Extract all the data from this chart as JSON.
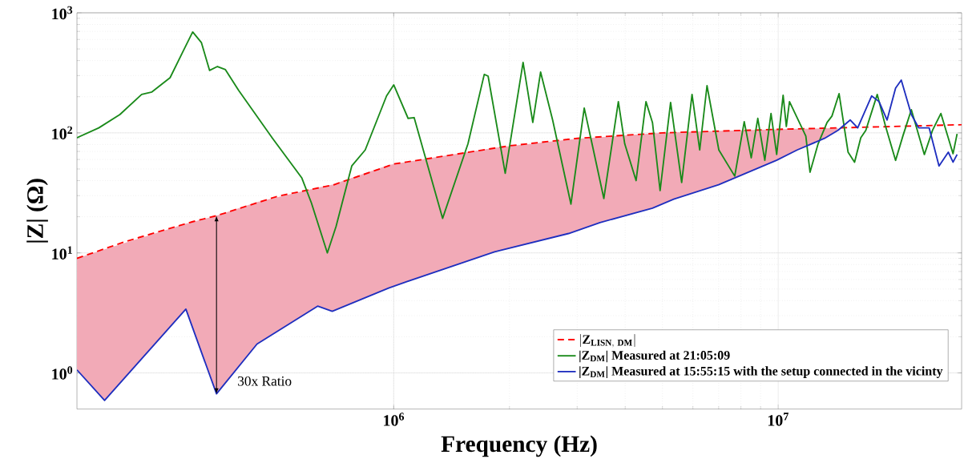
{
  "chart_data": {
    "type": "line",
    "xlabel": "Frequency (Hz)",
    "ylabel": "|Z| (Ω)",
    "log": "xy",
    "grid": true,
    "legend": "bottom right",
    "xlim": [
      150000,
      30000000
    ],
    "ylim": [
      0.5,
      1000
    ],
    "xticks": [
      {
        "value": 1000000,
        "label": "10$^{6}$"
      },
      {
        "value": 10000000,
        "label": "10$^{7}$"
      }
    ],
    "yticks": [
      {
        "value": 1,
        "label": "10$^{0}$"
      },
      {
        "value": 10,
        "label": "10$^{1}$"
      },
      {
        "value": 100,
        "label": "10$^{2}$"
      },
      {
        "value": 1000,
        "label": "10$^{3}$"
      }
    ],
    "annotations": [
      "30x Ratio"
    ],
    "series": [
      {
        "name": "|\\mathbf{Z}_{\\mathbf{LISN,\\ DM}}|",
        "color": "#ff0000",
        "line_style": "dashed",
        "x": [
          150000,
          200000,
          300000,
          346000,
          500000,
          700000,
          1000000,
          2000000,
          3000000,
          5000000,
          10000000,
          20000000,
          30000000
        ],
        "values": [
          9,
          12.4,
          18.2,
          20.4,
          29.7,
          37,
          55,
          78,
          90,
          100,
          107,
          113,
          117
        ]
      },
      {
        "name": "|Z$_{DM}$| Measured at 21:05:09",
        "color": "#1a8a1a",
        "line_style": "solid",
        "x": [
          150000,
          171000,
          194000,
          221000,
          235000,
          262000,
          284000,
          300000,
          316000,
          332000,
          348000,
          365000,
          395000,
          484000,
          577000,
          611000,
          672000,
          708000,
          778000,
          843000,
          958000,
          1000000,
          1090000,
          1130000,
          1340000,
          1560000,
          1720000,
          1760000,
          1950000,
          2170000,
          2300000,
          2410000,
          2590000,
          2890000,
          3130000,
          3280000,
          3520000,
          3840000,
          3990000,
          4270000,
          4530000,
          4710000,
          4930000,
          5250000,
          5610000,
          5970000,
          6250000,
          6530000,
          7010000,
          7710000,
          8160000,
          8510000,
          8850000,
          9230000,
          9580000,
          9910000,
          10300000,
          10500000,
          10700000,
          11800000,
          12100000,
          12700000,
          13400000,
          13800000,
          14400000,
          15200000,
          15800000,
          16400000,
          16900000,
          18100000,
          19000000,
          20200000,
          21100000,
          22200000,
          24000000,
          25200000,
          26500000,
          28500000,
          29200000
        ],
        "values": [
          91,
          110,
          142,
          209,
          219,
          288,
          486,
          692,
          566,
          331,
          357,
          336,
          226,
          90,
          42,
          26,
          10,
          16.6,
          53,
          72,
          203,
          251,
          132,
          134,
          19.4,
          81,
          307,
          297,
          46,
          386,
          122,
          321,
          128,
          25.5,
          161,
          81,
          28.4,
          182,
          81,
          40,
          182,
          122,
          33,
          179,
          38.6,
          209,
          72,
          247,
          72,
          43.6,
          124,
          62,
          132,
          59,
          145,
          66,
          206,
          113,
          182,
          94,
          47,
          81,
          122,
          138,
          212,
          69,
          57,
          91,
          105,
          209,
          115,
          59,
          94,
          156,
          66,
          105,
          145,
          67,
          98
        ]
      },
      {
        "name": "|Z$_{DM}$| Measured at 15:55:15 with the setup connected in the vicinty",
        "color": "#1f2fbf",
        "line_style": "solid",
        "x": [
          150000,
          177000,
          288000,
          346000,
          441000,
          634000,
          692000,
          970000,
          1070000,
          1830000,
          2850000,
          3440000,
          4710000,
          5350000,
          7000000,
          9900000,
          11200000,
          13200000,
          14300000,
          15400000,
          16100000,
          17500000,
          18300000,
          19200000,
          20200000,
          20900000,
          22200000,
          23200000,
          24700000,
          26200000,
          27700000,
          28500000,
          29200000
        ],
        "values": [
          1.06,
          0.59,
          3.4,
          0.67,
          1.74,
          3.6,
          3.26,
          5.1,
          5.7,
          10.2,
          14.5,
          17.9,
          23.6,
          28,
          37,
          59,
          72,
          90,
          105,
          128,
          110,
          203,
          182,
          128,
          236,
          275,
          142,
          110,
          110,
          53,
          69,
          57,
          66
        ],
        "lower": [
          1.06,
          0.59,
          3.4,
          0.67,
          1.74,
          3.6,
          3.26,
          5.1,
          5.7,
          10.2,
          14.5,
          17.9,
          23.6,
          28,
          37,
          59,
          72,
          90,
          105,
          null,
          null,
          null,
          null,
          null,
          null,
          null,
          null,
          null,
          null,
          null,
          null,
          null,
          null
        ],
        "upper": [
          9,
          10.7,
          17.5,
          20.4,
          26.5,
          35,
          37,
          54,
          57,
          75,
          88,
          92,
          99,
          101,
          104,
          107,
          108,
          109,
          110,
          null,
          null,
          null,
          null,
          null,
          null,
          null,
          null,
          null,
          null,
          null,
          null,
          null,
          null
        ]
      }
    ]
  }
}
